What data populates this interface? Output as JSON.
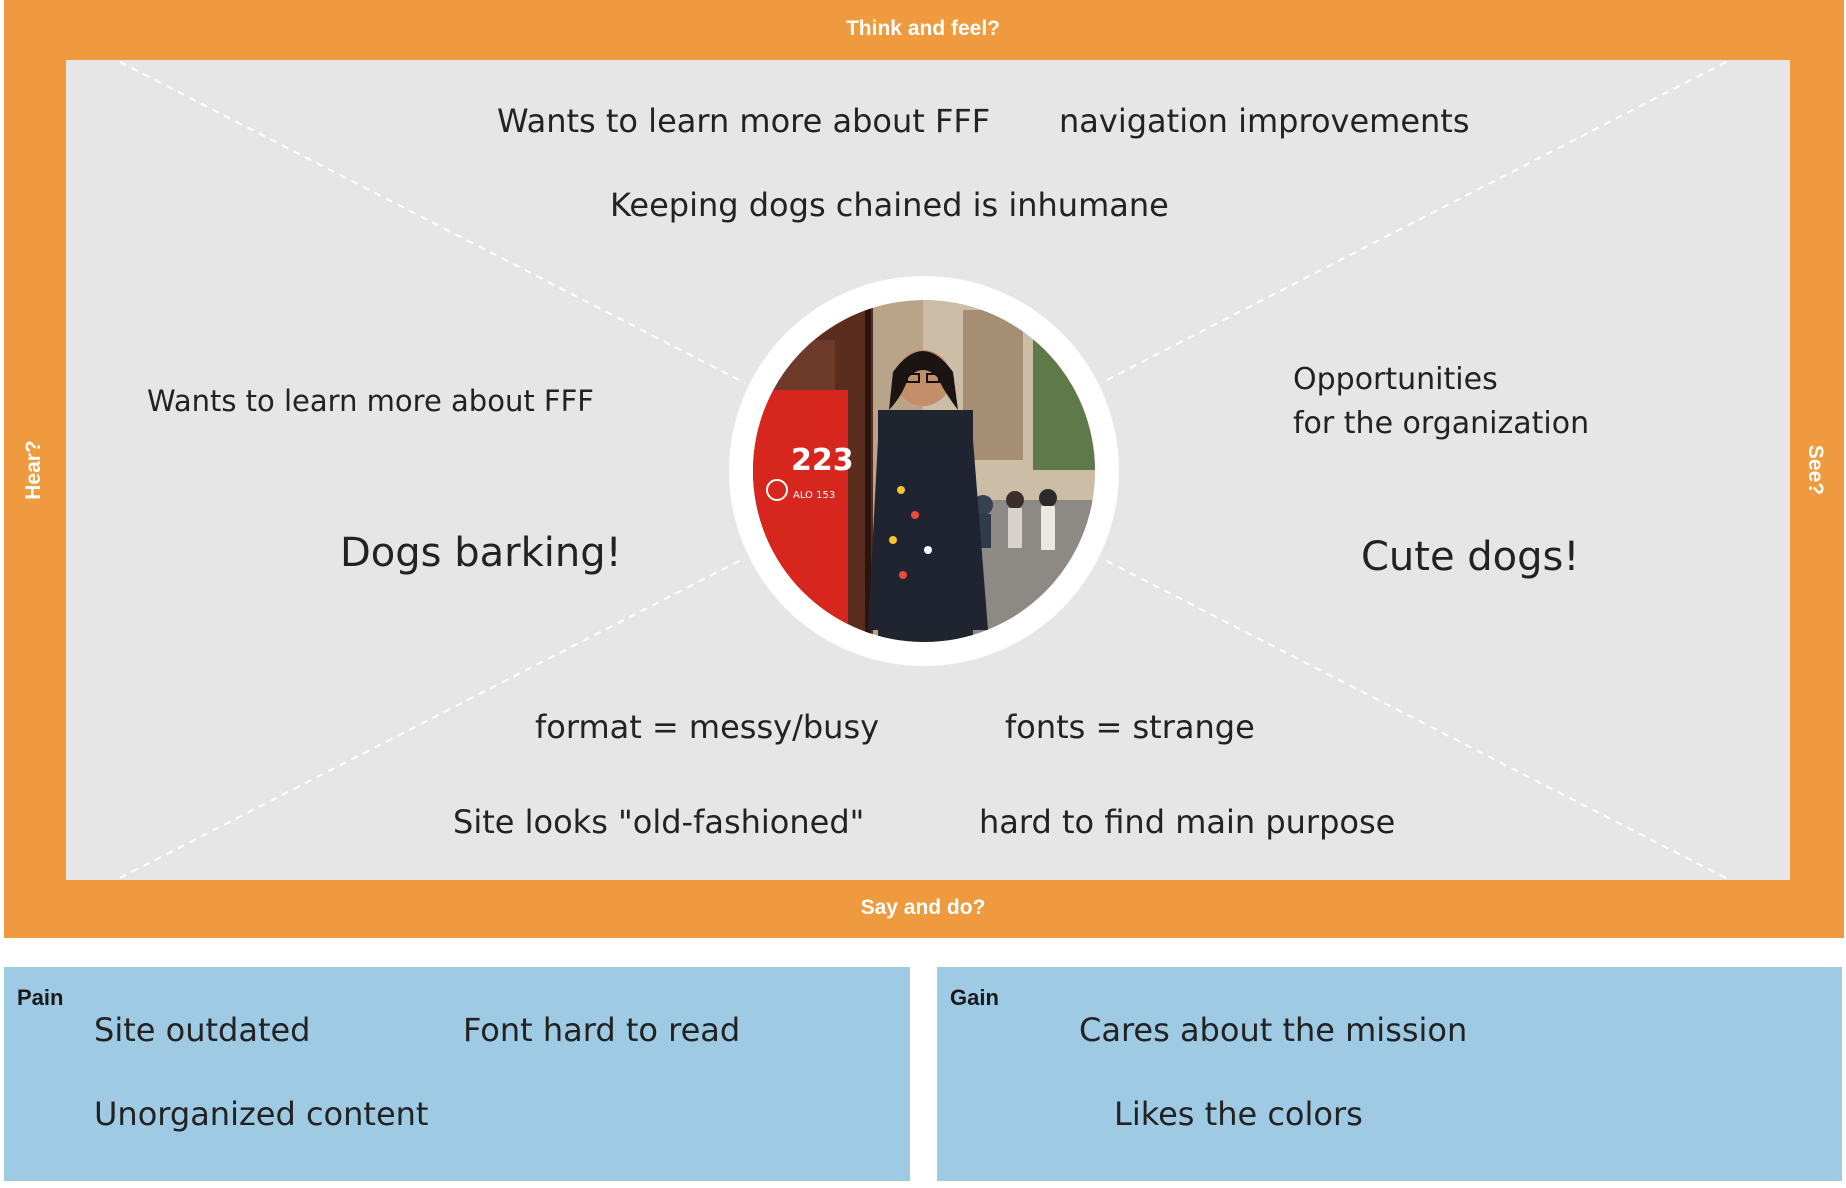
{
  "empathy_map": {
    "think_and_feel": {
      "label": "Think and feel?",
      "notes": [
        "Wants to learn more about FFF",
        "navigation improvements",
        "Keeping dogs chained is inhumane"
      ]
    },
    "hear": {
      "label": "Hear?",
      "notes": [
        "Wants to learn more about FFF",
        "Dogs barking!"
      ]
    },
    "see": {
      "label": "See?",
      "notes": [
        "Opportunities\nfor the organization",
        "Cute dogs!"
      ]
    },
    "say_and_do": {
      "label": "Say and do?",
      "notes": [
        "format = messy/busy",
        "fonts = strange",
        "Site looks \"old-fashioned\"",
        "hard to find main purpose"
      ]
    }
  },
  "pain": {
    "title": "Pain",
    "notes": [
      "Site outdated",
      "Font hard to read",
      "Unorganized content"
    ]
  },
  "gain": {
    "title": "Gain",
    "notes": [
      "Cares about the mission",
      "Likes the colors"
    ]
  },
  "colors": {
    "frame": "#ef9a3f",
    "canvas": "#e6e6e6",
    "panels": "#9ecae3",
    "label_text": "#ffffff"
  },
  "portrait": {
    "icon": "persona-photo",
    "tram_number": "223",
    "tram_phone": "ALO 153"
  }
}
